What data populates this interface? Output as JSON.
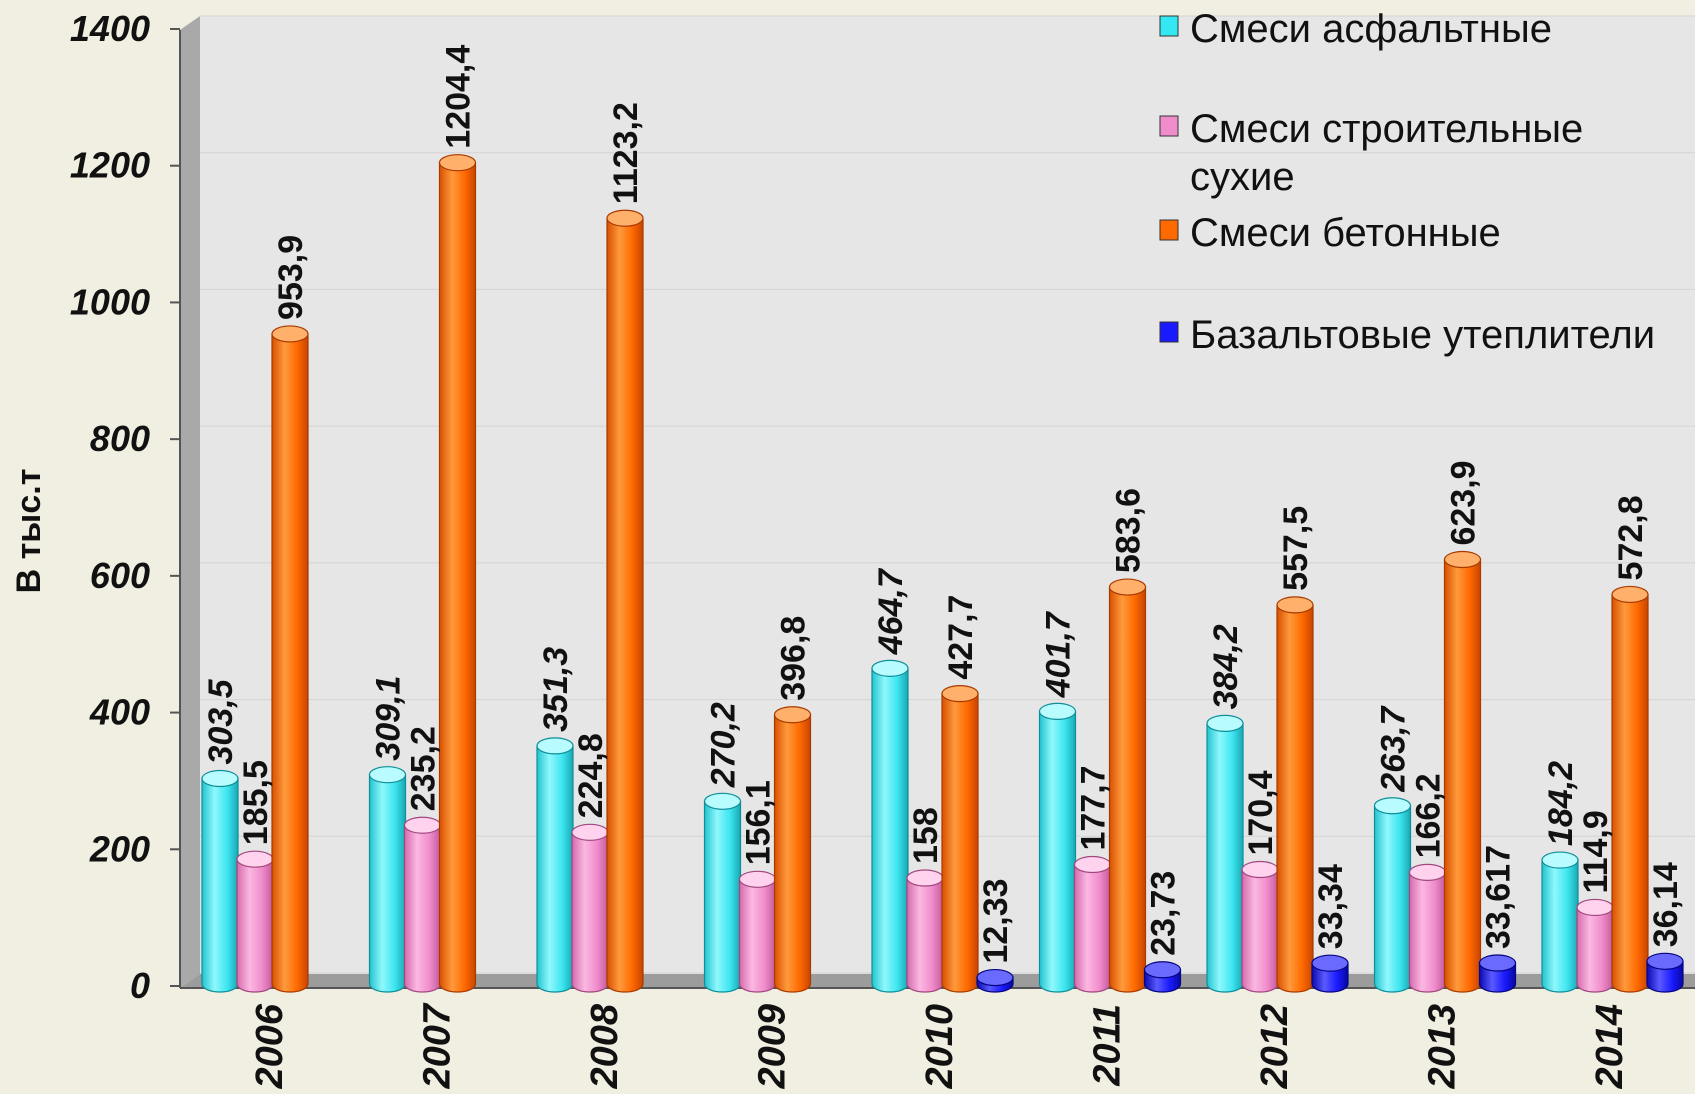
{
  "chart_data": {
    "type": "bar",
    "title": "",
    "xlabel": "",
    "ylabel": "В тыс.т",
    "ylim": [
      0,
      1400
    ],
    "yticks": [
      "0",
      "200",
      "400",
      "600",
      "800",
      "1000",
      "1200",
      "1400"
    ],
    "categories": [
      "2006",
      "2007",
      "2008",
      "2009",
      "2010",
      "2011",
      "2012",
      "2013",
      "2014"
    ],
    "legend_position": "top-right",
    "series": [
      {
        "name": "Смеси асфальтные",
        "color": "#33e8f2",
        "values": [
          303.5,
          309.1,
          351.3,
          270.2,
          464.7,
          401.7,
          384.2,
          263.7,
          184.2
        ],
        "labels": [
          "303,5",
          "309,1",
          "351,3",
          "270,2",
          "464,7",
          "401,7",
          "384,2",
          "263,7",
          "184,2"
        ]
      },
      {
        "name": "Смеси строительные сухие",
        "legend_lines": [
          "Смеси строительные",
          "сухие"
        ],
        "color": "#f08ccc",
        "values": [
          185.5,
          235.2,
          224.8,
          156.1,
          158,
          177.7,
          170.4,
          166.2,
          114.9
        ],
        "labels": [
          "185,5",
          "235,2",
          "224,8",
          "156,1",
          "158",
          "177,7",
          "170,4",
          "166,2",
          "114,9"
        ]
      },
      {
        "name": "Смеси бетонные",
        "color": "#ff6a00",
        "values": [
          953.9,
          1204.4,
          1123.2,
          396.8,
          427.7,
          583.6,
          557.5,
          623.9,
          572.8
        ],
        "labels": [
          "953,9",
          "1204,4",
          "1123,2",
          "396,8",
          "427,7",
          "583,6",
          "557,5",
          "623,9",
          "572,8"
        ]
      },
      {
        "name": "Базальтовые утеплители",
        "color": "#1a1aff",
        "values": [
          null,
          null,
          null,
          null,
          12.33,
          23.73,
          33.34,
          33.617,
          36.14
        ],
        "labels": [
          "",
          "",
          "",
          "",
          "12,33",
          "23,73",
          "33,34",
          "33,617",
          "36,14"
        ]
      }
    ]
  }
}
